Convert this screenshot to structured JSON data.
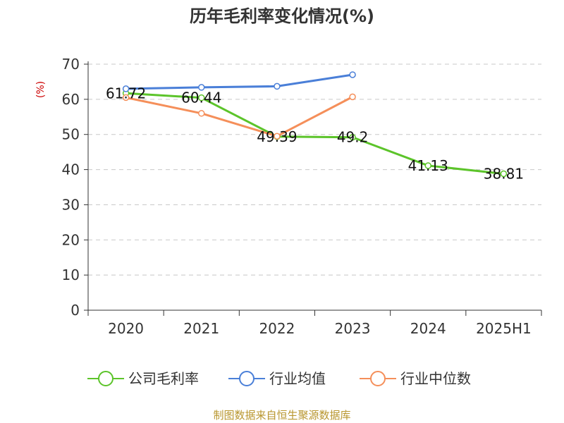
{
  "chart_data": {
    "type": "line",
    "title": "历年毛利率变化情况(%)",
    "ylabel": "(%)",
    "categories": [
      "2020",
      "2021",
      "2022",
      "2023",
      "2024",
      "2025H1"
    ],
    "ylim": [
      0,
      70
    ],
    "yticks": [
      0,
      10,
      20,
      30,
      40,
      50,
      60,
      70
    ],
    "grid": true,
    "legend_position": "bottom",
    "series": [
      {
        "name": "公司毛利率",
        "color": "#5cc42a",
        "values": [
          61.72,
          60.44,
          49.39,
          49.2,
          41.13,
          38.81
        ],
        "labels": [
          "61.72",
          "60.44",
          "49.39",
          "49.2",
          "41.13",
          "38.81"
        ]
      },
      {
        "name": "行业均值",
        "color": "#4a7fd8",
        "values": [
          63.0,
          63.4,
          63.7,
          67.0,
          null,
          null
        ]
      },
      {
        "name": "行业中位数",
        "color": "#f58f5a",
        "values": [
          60.5,
          56.0,
          49.5,
          60.7,
          null,
          null
        ]
      }
    ],
    "source": "制图数据来自恒生聚源数据库"
  }
}
